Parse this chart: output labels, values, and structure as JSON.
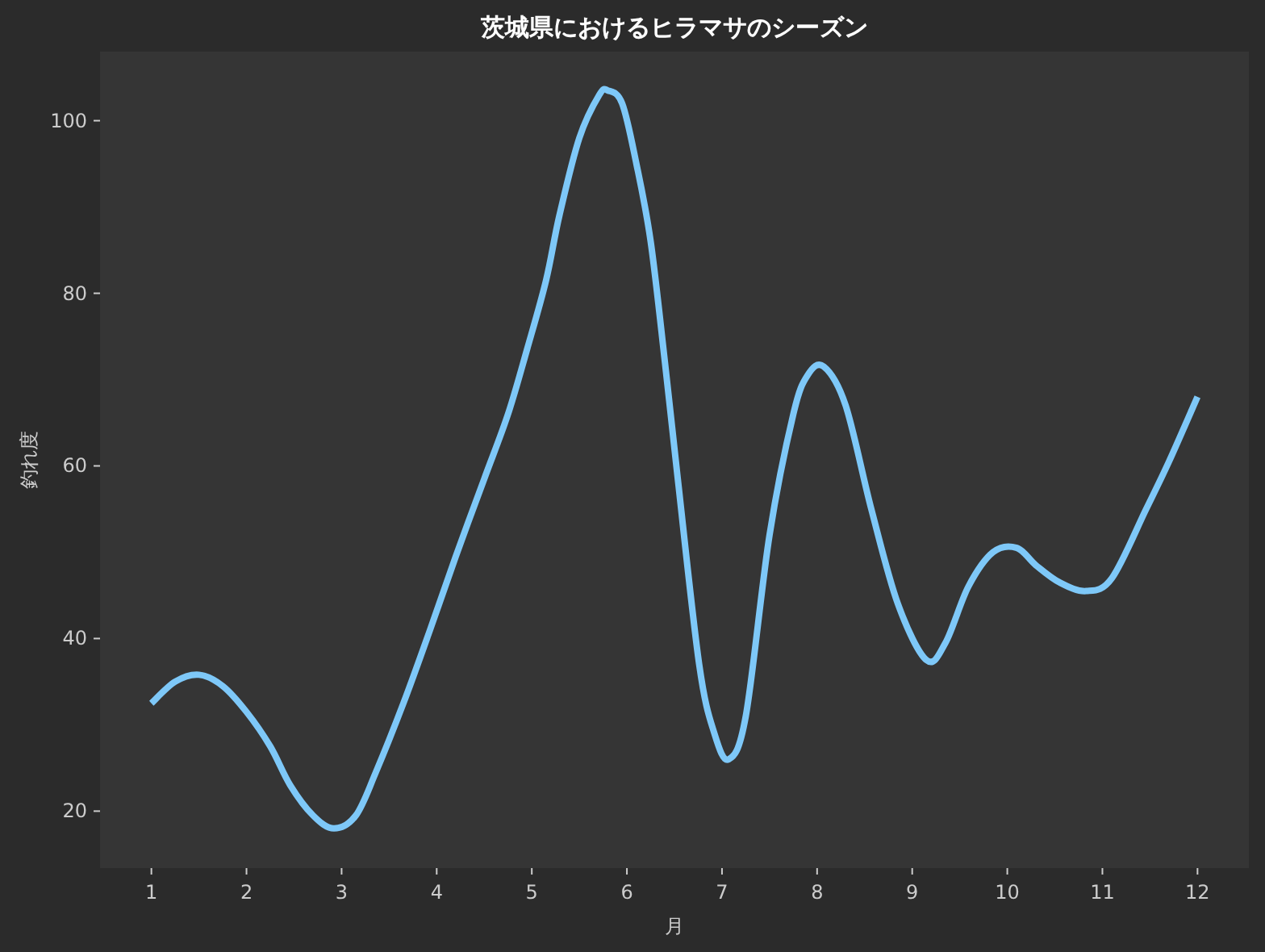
{
  "chart_data": {
    "type": "line",
    "title": "茨城県におけるヒラマサのシーズン",
    "xlabel": "月",
    "ylabel": "釣れ度",
    "xlim": [
      0.46,
      12.54
    ],
    "ylim": [
      13.4,
      108
    ],
    "xticks": [
      1,
      2,
      3,
      4,
      5,
      6,
      7,
      8,
      9,
      10,
      11,
      12
    ],
    "yticks": [
      20,
      40,
      60,
      80,
      100
    ],
    "grid": false,
    "line_style": "solid",
    "marker": "none",
    "series": [
      {
        "color": "#7ec8f8",
        "x": [
          1,
          1.25,
          1.5,
          1.75,
          2,
          2.25,
          2.46,
          2.7,
          2.92,
          3.15,
          3.36,
          3.65,
          3.93,
          4.2,
          4.5,
          4.75,
          4.95,
          5.15,
          5.29,
          5.5,
          5.71,
          5.8,
          5.95,
          6.1,
          6.25,
          6.4,
          6.53,
          6.76,
          6.92,
          7.07,
          7.25,
          7.5,
          7.75,
          7.9,
          8.07,
          8.3,
          8.57,
          8.85,
          9.15,
          9.35,
          9.59,
          9.85,
          10.1,
          10.3,
          10.55,
          10.83,
          11.1,
          11.46,
          11.7,
          12
        ],
        "values": [
          32.5,
          35,
          35.8,
          34.5,
          31.5,
          27.5,
          23,
          19.5,
          18,
          19.5,
          24.5,
          32.5,
          41,
          49.5,
          58.5,
          66,
          73.5,
          81.5,
          89,
          98,
          103,
          103.5,
          102,
          95,
          86,
          72,
          59,
          37,
          29,
          26,
          31,
          52,
          66,
          70.5,
          71.5,
          67,
          55,
          44,
          37.5,
          39.5,
          46,
          50,
          50.5,
          48.5,
          46.5,
          45.5,
          47,
          55,
          60.5,
          68
        ]
      }
    ]
  }
}
